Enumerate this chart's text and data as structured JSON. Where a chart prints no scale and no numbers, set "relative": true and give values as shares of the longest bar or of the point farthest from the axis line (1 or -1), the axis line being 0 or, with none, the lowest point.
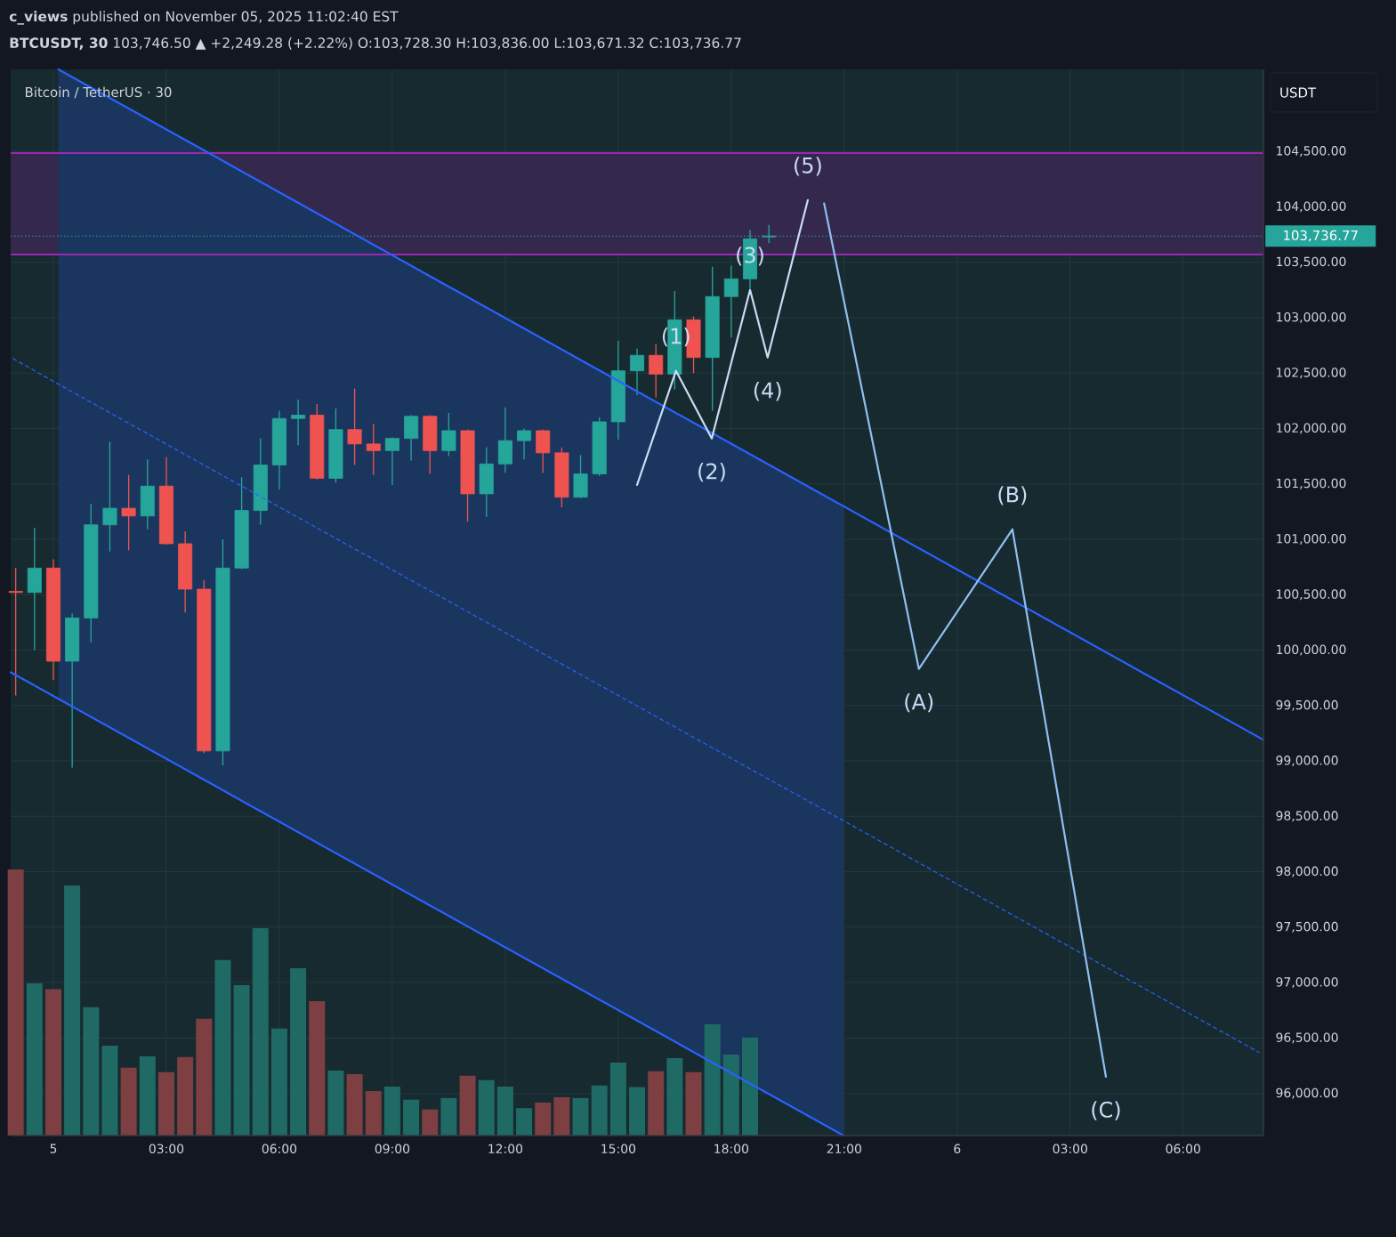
{
  "chart_data": [
    {
      "type": "candlestick",
      "title": "**c_views** published on November 05, 2025 11:02:40 EST",
      "subtitle": "**BTCUSDT, 30**  103,746.50 ▲ +2,249.28 (+2.22%)  O:103,728.30  H:103,836.00  L:103,671.32  C:103,736.77",
      "ylabel": "USDT",
      "x": [
        "2025-11-04T23:00",
        "2025-11-04T23:30",
        "2025-11-05T00:00",
        "2025-11-05T00:30",
        "2025-11-05T01:00",
        "2025-11-05T01:30",
        "2025-11-05T02:00",
        "2025-11-05T02:30",
        "2025-11-05T03:00",
        "2025-11-05T03:30",
        "2025-11-05T04:00",
        "2025-11-05T04:30",
        "2025-11-05T05:00",
        "2025-11-05T05:30",
        "2025-11-05T06:00",
        "2025-11-05T06:30",
        "2025-11-05T07:00",
        "2025-11-05T07:30",
        "2025-11-05T08:00",
        "2025-11-05T08:30",
        "2025-11-05T09:00",
        "2025-11-05T09:30",
        "2025-11-05T10:00",
        "2025-11-05T10:30",
        "2025-11-05T11:00",
        "2025-11-05T11:30",
        "2025-11-05T12:00",
        "2025-11-05T12:30",
        "2025-11-05T13:00",
        "2025-11-05T13:30",
        "2025-11-05T14:00",
        "2025-11-05T14:30",
        "2025-11-05T15:00",
        "2025-11-05T15:30",
        "2025-11-05T16:00",
        "2025-11-05T16:30",
        "2025-11-05T17:00",
        "2025-11-05T17:30",
        "2025-11-05T18:00",
        "2025-11-05T18:30",
        "2025-11-05T19:00"
      ],
      "ohlc": [
        [
          100530,
          100740,
          99590,
          100520
        ],
        [
          100520,
          101105,
          100000,
          100740
        ],
        [
          100740,
          100820,
          99730,
          99900
        ],
        [
          99900,
          100330,
          98940,
          100290
        ],
        [
          100290,
          101320,
          100070,
          101130
        ],
        [
          101130,
          101880,
          100890,
          101280
        ],
        [
          101280,
          101580,
          100900,
          101210
        ],
        [
          101210,
          101720,
          101090,
          101480
        ],
        [
          101480,
          101740,
          100950,
          100960
        ],
        [
          100960,
          101070,
          100340,
          100550
        ],
        [
          100550,
          100630,
          99070,
          99090
        ],
        [
          99090,
          101000,
          98960,
          100740
        ],
        [
          100740,
          101560,
          100730,
          101260
        ],
        [
          101260,
          101910,
          101130,
          101670
        ],
        [
          101670,
          102160,
          101450,
          102090
        ],
        [
          102090,
          102260,
          101850,
          102120
        ],
        [
          102120,
          102220,
          101540,
          101550
        ],
        [
          101550,
          102180,
          101510,
          101990
        ],
        [
          101990,
          102360,
          101670,
          101860
        ],
        [
          101860,
          102040,
          101580,
          101800
        ],
        [
          101800,
          101920,
          101490,
          101910
        ],
        [
          101910,
          102120,
          101710,
          102110
        ],
        [
          102110,
          102120,
          101590,
          101800
        ],
        [
          101800,
          102140,
          101750,
          101980
        ],
        [
          101980,
          101990,
          101160,
          101410
        ],
        [
          101410,
          101830,
          101200,
          101680
        ],
        [
          101680,
          102190,
          101600,
          101890
        ],
        [
          101890,
          102000,
          101720,
          101980
        ],
        [
          101980,
          101990,
          101600,
          101780
        ],
        [
          101780,
          101830,
          101290,
          101380
        ],
        [
          101380,
          101760,
          101370,
          101590
        ],
        [
          101590,
          102100,
          101570,
          102060
        ],
        [
          102060,
          102790,
          101900,
          102520
        ],
        [
          102520,
          102720,
          102300,
          102660
        ],
        [
          102660,
          102760,
          102280,
          102490
        ],
        [
          102490,
          103240,
          102350,
          102980
        ],
        [
          102980,
          103010,
          102500,
          102640
        ],
        [
          102640,
          103460,
          102160,
          103190
        ],
        [
          103190,
          103470,
          102820,
          103350
        ],
        [
          103350,
          103790,
          103260,
          103710
        ],
        [
          103728.3,
          103836.0,
          103671.32,
          103736.77
        ]
      ],
      "series": [
        {
          "type": "line",
          "x": [
            "2025-11-05T00:08",
            "2025-11-06T08:08"
          ],
          "values": [
            105240,
            99190
          ],
          "color": "#2962ff"
        },
        {
          "type": "line",
          "x": [
            "2025-11-04T22:52",
            "2025-11-05T20:59"
          ],
          "values": [
            99800,
            95620
          ],
          "color": "#2962ff"
        },
        {
          "type": "line",
          "x": [
            "2025-11-04T22:56",
            "2025-11-05T00:08",
            "2025-11-05T20:59",
            "2025-11-06T08:01"
          ],
          "values": [
            102630,
            102400,
            98460,
            96370
          ],
          "lower": [
            null,
            99570,
            95620,
            null
          ],
          "upper": [
            null,
            105240,
            101300,
            null
          ],
          "color": "#2962ff",
          "line_style": "dashed"
        },
        {
          "type": "line",
          "x": [
            "2025-11-05T15:30",
            "2025-11-05T16:32",
            "2025-11-05T17:29",
            "2025-11-05T18:30",
            "2025-11-05T18:58",
            "2025-11-05T20:02"
          ],
          "values": [
            101490,
            102520,
            101910,
            103250,
            102640,
            104060
          ],
          "color": "#c8dcf5"
        },
        {
          "type": "line",
          "x": [
            "2025-11-05T20:28",
            "2025-11-05T22:59",
            "2025-11-06T01:28",
            "2025-11-06T03:57"
          ],
          "values": [
            104030,
            99830,
            101090,
            96150
          ],
          "color": "#90bff0"
        }
      ],
      "annotations": [
        "Bitcoin / TetherUS · 30",
        {
          "text": "(1)",
          "x": "2025-11-05T16:32",
          "y": 102520
        },
        {
          "text": "(2)",
          "x": "2025-11-05T17:29",
          "y": 101910
        },
        {
          "text": "(3)",
          "x": "2025-11-05T18:30",
          "y": 103250
        },
        {
          "text": "(4)",
          "x": "2025-11-05T18:58",
          "y": 102640
        },
        {
          "text": "(5)",
          "x": "2025-11-05T20:02",
          "y": 104060
        },
        {
          "text": "(A)",
          "x": "2025-11-05T22:59",
          "y": 99830
        },
        {
          "text": "(B)",
          "x": "2025-11-06T01:28",
          "y": 101090
        },
        {
          "text": "(C)",
          "x": "2025-11-06T03:57",
          "y": 96150
        }
      ],
      "ref_lines": [
        {
          "axis": "y",
          "value": 103736.77,
          "label": "103,736.77",
          "color": "#26a69a",
          "line_style": "dotted"
        },
        {
          "axis": "y",
          "value": 103570,
          "color": "#9c27b0"
        },
        {
          "axis": "y",
          "value": 104485,
          "color": "#9c27b0"
        }
      ],
      "bands": [
        {
          "axis": "y",
          "from": 103570,
          "to": 104485,
          "color": "#34294c"
        }
      ],
      "xlim": [
        "2025-11-04T22:52",
        "2025-11-06T08:08"
      ],
      "ylim": [
        95620,
        105240
      ],
      "xticks": [
        {
          "value": "2025-11-05T00:00",
          "label": "5"
        },
        {
          "value": "2025-11-05T03:00",
          "label": "03:00"
        },
        {
          "value": "2025-11-05T06:00",
          "label": "06:00"
        },
        {
          "value": "2025-11-05T09:00",
          "label": "09:00"
        },
        {
          "value": "2025-11-05T12:00",
          "label": "12:00"
        },
        {
          "value": "2025-11-05T15:00",
          "label": "15:00"
        },
        {
          "value": "2025-11-05T18:00",
          "label": "18:00"
        },
        {
          "value": "2025-11-05T21:00",
          "label": "21:00"
        },
        {
          "value": "2025-11-06T00:00",
          "label": "6"
        },
        {
          "value": "2025-11-06T03:00",
          "label": "03:00"
        },
        {
          "value": "2025-11-06T06:00",
          "label": "06:00"
        }
      ],
      "yticks": [
        {
          "value": 96000,
          "label": "96,000.00"
        },
        {
          "value": 96500,
          "label": "96,500.00"
        },
        {
          "value": 97000,
          "label": "97,000.00"
        },
        {
          "value": 97500,
          "label": "97,500.00"
        },
        {
          "value": 98000,
          "label": "98,000.00"
        },
        {
          "value": 98500,
          "label": "98,500.00"
        },
        {
          "value": 99000,
          "label": "99,000.00"
        },
        {
          "value": 99500,
          "label": "99,500.00"
        },
        {
          "value": 100000,
          "label": "100,000.00"
        },
        {
          "value": 100500,
          "label": "100,500.00"
        },
        {
          "value": 101000,
          "label": "101,000.00"
        },
        {
          "value": 101500,
          "label": "101,500.00"
        },
        {
          "value": 102000,
          "label": "102,000.00"
        },
        {
          "value": 102500,
          "label": "102,500.00"
        },
        {
          "value": 103000,
          "label": "103,000.00"
        },
        {
          "value": 103500,
          "label": "103,500.00"
        },
        {
          "value": 104000,
          "label": "104,000.00"
        },
        {
          "value": 104500,
          "label": "104,500.00"
        }
      ],
      "grid": true
    },
    {
      "type": "bar",
      "relative": true,
      "categories": [
        null,
        null,
        null,
        null,
        null,
        null,
        null,
        null,
        null,
        null,
        null,
        null,
        null,
        null,
        null,
        null,
        null,
        null,
        null,
        null,
        null,
        null,
        null,
        null,
        null,
        null,
        null,
        null,
        null,
        null,
        null,
        null,
        null,
        null,
        null,
        null,
        null,
        null,
        null,
        null
      ],
      "values": [
        1,
        0.572,
        0.55,
        0.94,
        0.482,
        0.338,
        0.255,
        0.298,
        0.238,
        0.295,
        0.439,
        0.66,
        0.565,
        0.779,
        0.402,
        0.629,
        0.505,
        0.244,
        0.231,
        0.167,
        0.184,
        0.135,
        0.098,
        0.141,
        0.225,
        0.208,
        0.184,
        0.103,
        0.124,
        0.144,
        0.141,
        0.188,
        0.274,
        0.182,
        0.242,
        0.291,
        0.238,
        0.418,
        0.304,
        0.368
      ],
      "colors": [
        "#7e3f42",
        "#1f6a64",
        "#7e3f42",
        "#1f6a64",
        "#1f6a64",
        "#1f6a64",
        "#7e3f42",
        "#1f6a64",
        "#7e3f42",
        "#7e3f42",
        "#7e3f42",
        "#1f6a64",
        "#1f6a64",
        "#1f6a64",
        "#1f6a64",
        "#1f6a64",
        "#7e3f42",
        "#1f6a64",
        "#7e3f42",
        "#7e3f42",
        "#1f6a64",
        "#1f6a64",
        "#7e3f42",
        "#1f6a64",
        "#7e3f42",
        "#1f6a64",
        "#1f6a64",
        "#1f6a64",
        "#7e3f42",
        "#7e3f42",
        "#1f6a64",
        "#1f6a64",
        "#1f6a64",
        "#1f6a64",
        "#7e3f42",
        "#1f6a64",
        "#7e3f42",
        "#1f6a64",
        "#1f6a64",
        "#1f6a64"
      ]
    }
  ]
}
